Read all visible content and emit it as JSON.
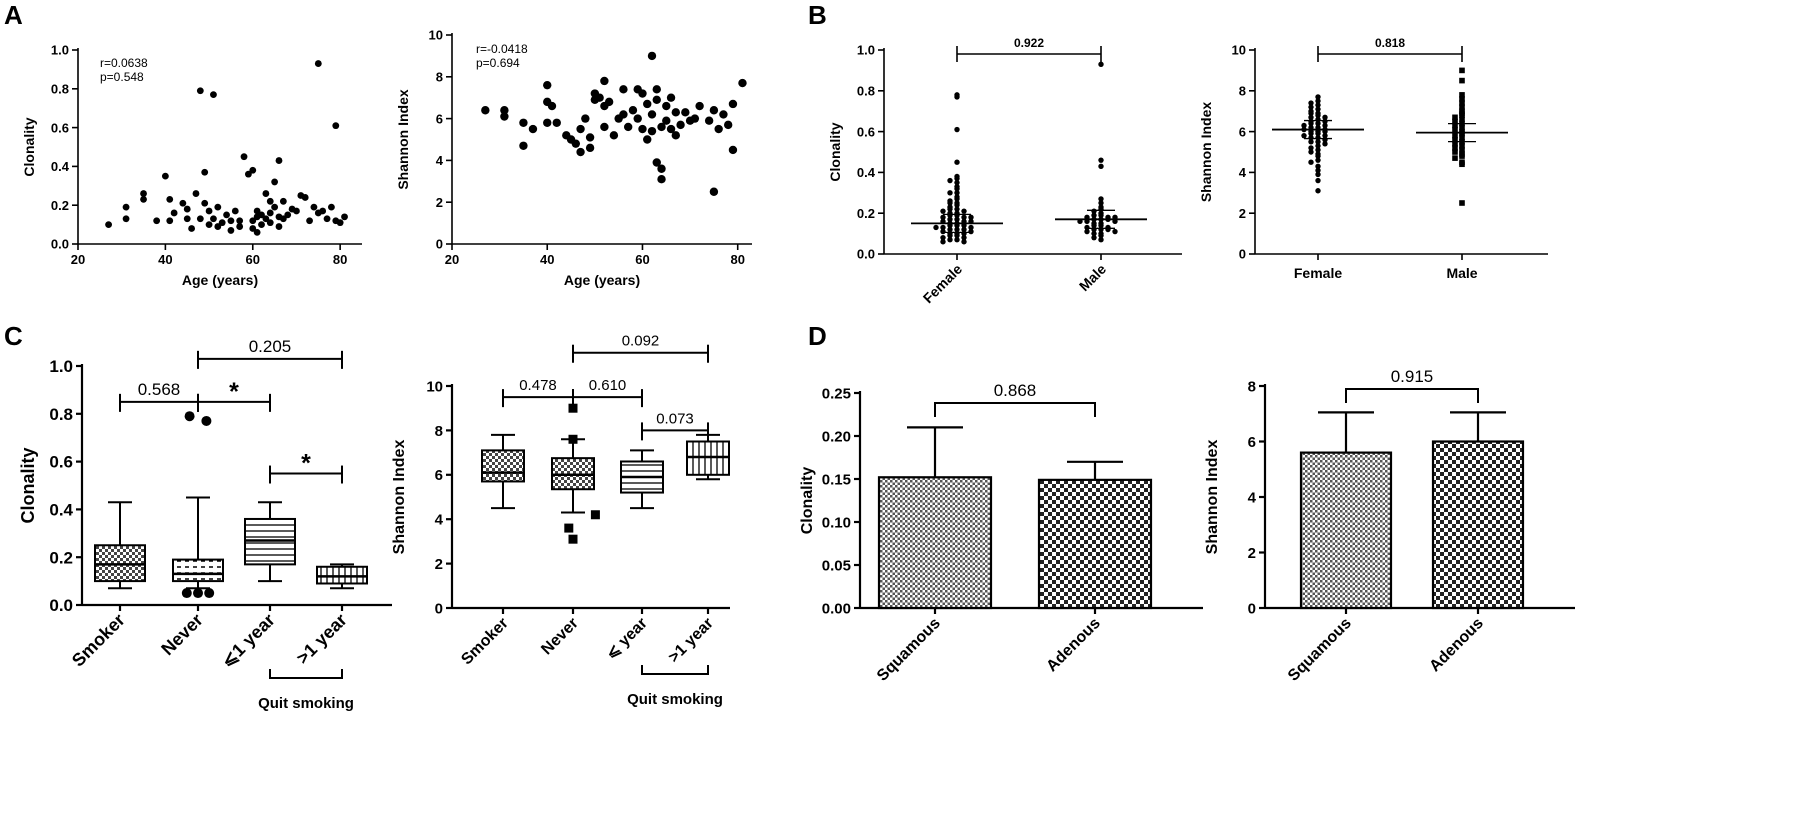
{
  "panel_labels": [
    "A",
    "B",
    "C",
    "D"
  ],
  "chart_data": [
    {
      "id": "A1",
      "panel": "A",
      "type": "scatter",
      "xlabel": "Age (years)",
      "ylabel": "Clonality",
      "xlim": [
        20,
        85
      ],
      "ylim": [
        0,
        1.0
      ],
      "xticks": [
        20,
        40,
        60,
        80
      ],
      "yticks": [
        0.0,
        0.2,
        0.4,
        0.6,
        0.8,
        1.0
      ],
      "yticklabels": [
        "0.0",
        "0.2",
        "0.4",
        "0.6",
        "0.8",
        "1.0"
      ],
      "annotations": [
        "r=0.0638",
        "p=0.548"
      ],
      "points": [
        [
          27,
          0.1
        ],
        [
          31,
          0.13
        ],
        [
          31,
          0.19
        ],
        [
          35,
          0.23
        ],
        [
          35,
          0.26
        ],
        [
          38,
          0.12
        ],
        [
          40,
          0.35
        ],
        [
          41,
          0.23
        ],
        [
          41,
          0.12
        ],
        [
          42,
          0.16
        ],
        [
          44,
          0.21
        ],
        [
          45,
          0.18
        ],
        [
          45,
          0.13
        ],
        [
          46,
          0.08
        ],
        [
          47,
          0.26
        ],
        [
          48,
          0.13
        ],
        [
          48,
          0.79
        ],
        [
          49,
          0.21
        ],
        [
          49,
          0.37
        ],
        [
          50,
          0.17
        ],
        [
          50,
          0.1
        ],
        [
          51,
          0.77
        ],
        [
          51,
          0.13
        ],
        [
          52,
          0.09
        ],
        [
          52,
          0.19
        ],
        [
          53,
          0.11
        ],
        [
          54,
          0.15
        ],
        [
          55,
          0.07
        ],
        [
          55,
          0.12
        ],
        [
          56,
          0.17
        ],
        [
          57,
          0.09
        ],
        [
          57,
          0.12
        ],
        [
          58,
          0.45
        ],
        [
          59,
          0.36
        ],
        [
          60,
          0.38
        ],
        [
          60,
          0.08
        ],
        [
          60,
          0.12
        ],
        [
          61,
          0.14
        ],
        [
          61,
          0.17
        ],
        [
          61,
          0.06
        ],
        [
          62,
          0.15
        ],
        [
          62,
          0.1
        ],
        [
          63,
          0.13
        ],
        [
          63,
          0.26
        ],
        [
          64,
          0.22
        ],
        [
          64,
          0.16
        ],
        [
          64,
          0.11
        ],
        [
          65,
          0.32
        ],
        [
          65,
          0.19
        ],
        [
          66,
          0.43
        ],
        [
          66,
          0.14
        ],
        [
          66,
          0.09
        ],
        [
          67,
          0.22
        ],
        [
          67,
          0.13
        ],
        [
          68,
          0.15
        ],
        [
          69,
          0.18
        ],
        [
          70,
          0.17
        ],
        [
          71,
          0.25
        ],
        [
          72,
          0.24
        ],
        [
          73,
          0.12
        ],
        [
          74,
          0.19
        ],
        [
          75,
          0.93
        ],
        [
          75,
          0.16
        ],
        [
          76,
          0.17
        ],
        [
          77,
          0.13
        ],
        [
          78,
          0.19
        ],
        [
          79,
          0.61
        ],
        [
          79,
          0.12
        ],
        [
          80,
          0.11
        ],
        [
          81,
          0.14
        ]
      ]
    },
    {
      "id": "A2",
      "panel": "A",
      "type": "scatter",
      "xlabel": "Age (years)",
      "ylabel": "Shannon Index",
      "xlim": [
        20,
        83
      ],
      "ylim": [
        0,
        10
      ],
      "xticks": [
        20,
        40,
        60,
        80
      ],
      "yticks": [
        0,
        2,
        4,
        6,
        8,
        10
      ],
      "yticklabels": [
        "0",
        "2",
        "4",
        "6",
        "8",
        "10"
      ],
      "annotations": [
        "r=-0.0418",
        "p=0.694"
      ],
      "points": [
        [
          27,
          6.4
        ],
        [
          31,
          6.4
        ],
        [
          31,
          6.1
        ],
        [
          35,
          5.8
        ],
        [
          35,
          4.7
        ],
        [
          37,
          5.5
        ],
        [
          40,
          7.6
        ],
        [
          40,
          6.8
        ],
        [
          40,
          5.8
        ],
        [
          41,
          6.6
        ],
        [
          42,
          5.8
        ],
        [
          44,
          5.2
        ],
        [
          45,
          5.0
        ],
        [
          46,
          4.8
        ],
        [
          47,
          4.4
        ],
        [
          47,
          5.5
        ],
        [
          48,
          6.0
        ],
        [
          49,
          4.6
        ],
        [
          49,
          5.1
        ],
        [
          50,
          7.2
        ],
        [
          50,
          6.9
        ],
        [
          51,
          7.0
        ],
        [
          52,
          7.8
        ],
        [
          52,
          6.6
        ],
        [
          52,
          5.6
        ],
        [
          53,
          6.8
        ],
        [
          54,
          5.2
        ],
        [
          55,
          6.0
        ],
        [
          56,
          7.4
        ],
        [
          56,
          6.2
        ],
        [
          57,
          5.6
        ],
        [
          58,
          6.4
        ],
        [
          59,
          7.4
        ],
        [
          59,
          6.0
        ],
        [
          60,
          7.2
        ],
        [
          60,
          5.5
        ],
        [
          61,
          6.7
        ],
        [
          61,
          5.0
        ],
        [
          62,
          9.0
        ],
        [
          62,
          6.2
        ],
        [
          62,
          5.4
        ],
        [
          63,
          6.9
        ],
        [
          63,
          3.9
        ],
        [
          63,
          7.4
        ],
        [
          64,
          5.6
        ],
        [
          64,
          3.1
        ],
        [
          64,
          3.6
        ],
        [
          65,
          6.6
        ],
        [
          65,
          5.9
        ],
        [
          66,
          7.0
        ],
        [
          66,
          5.5
        ],
        [
          67,
          6.3
        ],
        [
          67,
          5.2
        ],
        [
          68,
          5.7
        ],
        [
          69,
          6.3
        ],
        [
          70,
          5.9
        ],
        [
          71,
          6.0
        ],
        [
          72,
          6.6
        ],
        [
          74,
          5.9
        ],
        [
          75,
          2.5
        ],
        [
          75,
          6.4
        ],
        [
          76,
          5.5
        ],
        [
          77,
          6.2
        ],
        [
          78,
          5.7
        ],
        [
          79,
          4.5
        ],
        [
          79,
          6.7
        ],
        [
          81,
          7.7
        ]
      ]
    },
    {
      "id": "B1",
      "panel": "B",
      "type": "scatter",
      "categories": [
        "Female",
        "Male"
      ],
      "ylabel": "Clonality",
      "ylim": [
        0,
        1.0
      ],
      "yticks": [
        0.0,
        0.2,
        0.4,
        0.6,
        0.8,
        1.0
      ],
      "yticklabels": [
        "0.0",
        "0.2",
        "0.4",
        "0.6",
        "0.8",
        "1.0"
      ],
      "median_lines": [
        0.15,
        0.17
      ],
      "comparisons": [
        {
          "from": 0,
          "to": 1,
          "label": "0.922"
        }
      ],
      "groups": [
        {
          "name": "Female",
          "values": [
            0.78,
            0.77,
            0.61,
            0.45,
            0.38,
            0.37,
            0.36,
            0.35,
            0.33,
            0.32,
            0.3,
            0.3,
            0.28,
            0.27,
            0.26,
            0.25,
            0.25,
            0.24,
            0.23,
            0.22,
            0.22,
            0.21,
            0.21,
            0.2,
            0.2,
            0.19,
            0.19,
            0.18,
            0.18,
            0.18,
            0.17,
            0.17,
            0.16,
            0.16,
            0.16,
            0.15,
            0.15,
            0.15,
            0.14,
            0.14,
            0.14,
            0.13,
            0.13,
            0.13,
            0.12,
            0.12,
            0.12,
            0.11,
            0.11,
            0.1,
            0.1,
            0.1,
            0.09,
            0.09,
            0.08,
            0.08,
            0.07,
            0.07,
            0.06,
            0.06
          ]
        },
        {
          "name": "Male",
          "values": [
            0.93,
            0.46,
            0.43,
            0.27,
            0.25,
            0.23,
            0.22,
            0.21,
            0.2,
            0.19,
            0.19,
            0.18,
            0.18,
            0.18,
            0.17,
            0.17,
            0.17,
            0.16,
            0.16,
            0.16,
            0.15,
            0.15,
            0.14,
            0.14,
            0.13,
            0.13,
            0.12,
            0.12,
            0.12,
            0.11,
            0.11,
            0.1,
            0.1,
            0.09,
            0.08,
            0.07
          ]
        }
      ]
    },
    {
      "id": "B2",
      "panel": "B",
      "type": "scatter",
      "categories": [
        "Female",
        "Male"
      ],
      "ylabel": "Shannon Index",
      "ylim": [
        0,
        10
      ],
      "yticks": [
        0,
        2,
        4,
        6,
        8,
        10
      ],
      "yticklabels": [
        "0",
        "2",
        "4",
        "6",
        "8",
        "10"
      ],
      "median_lines": [
        6.1,
        5.95
      ],
      "comparisons": [
        {
          "from": 0,
          "to": 1,
          "label": "0.818"
        }
      ],
      "groups": [
        {
          "name": "Female",
          "values": [
            7.7,
            7.5,
            7.4,
            7.3,
            7.2,
            7.1,
            7.0,
            6.9,
            6.9,
            6.8,
            6.7,
            6.7,
            6.6,
            6.5,
            6.5,
            6.4,
            6.4,
            6.3,
            6.3,
            6.2,
            6.2,
            6.1,
            6.1,
            6.0,
            6.0,
            6.0,
            5.9,
            5.9,
            5.8,
            5.8,
            5.7,
            5.7,
            5.6,
            5.5,
            5.5,
            5.4,
            5.3,
            5.2,
            5.1,
            5.0,
            4.9,
            4.8,
            4.6,
            4.5,
            4.3,
            4.1,
            3.9,
            3.6,
            3.1
          ]
        },
        {
          "name": "Male",
          "values": [
            9.0,
            8.5,
            7.8,
            7.6,
            7.4,
            7.2,
            7.0,
            6.9,
            6.8,
            6.7,
            6.6,
            6.5,
            6.4,
            6.3,
            6.2,
            6.1,
            6.0,
            5.9,
            5.8,
            5.7,
            5.6,
            5.5,
            5.4,
            5.3,
            5.2,
            5.1,
            5.0,
            4.9,
            4.8,
            4.7,
            4.5,
            4.4,
            2.5
          ]
        }
      ]
    },
    {
      "id": "C1",
      "panel": "C",
      "type": "box",
      "categories": [
        "Smoker",
        "Never",
        "⩽1 year",
        ">1 year"
      ],
      "ylabel": "Clonality",
      "ylim": [
        0,
        1.0
      ],
      "yticks": [
        0.0,
        0.2,
        0.4,
        0.6,
        0.8,
        1.0
      ],
      "yticklabels": [
        "0.0",
        "0.2",
        "0.4",
        "0.6",
        "0.8",
        "1.0"
      ],
      "group_label": "Quit smoking",
      "boxes": [
        {
          "name": "Smoker",
          "min": 0.07,
          "q1": 0.1,
          "median": 0.17,
          "q3": 0.25,
          "max": 0.43,
          "pattern": "check"
        },
        {
          "name": "Never",
          "min": 0.07,
          "q1": 0.1,
          "median": 0.13,
          "q3": 0.19,
          "max": 0.45,
          "pattern": "dash"
        },
        {
          "name": "⩽1 year",
          "min": 0.1,
          "q1": 0.17,
          "median": 0.27,
          "q3": 0.36,
          "max": 0.43,
          "pattern": "hstripe"
        },
        {
          "name": ">1 year",
          "min": 0.07,
          "q1": 0.09,
          "median": 0.12,
          "q3": 0.16,
          "max": 0.17,
          "pattern": "vstripe"
        }
      ],
      "outliers": [
        {
          "group": 1,
          "value": 0.79,
          "offset": -0.3
        },
        {
          "group": 1,
          "value": 0.77,
          "offset": 0.3
        },
        {
          "group": 1,
          "value": 0.05,
          "offset": -0.4
        },
        {
          "group": 1,
          "value": 0.05,
          "offset": 0.0
        },
        {
          "group": 1,
          "value": 0.05,
          "offset": 0.4
        }
      ],
      "outlier_shape": "circle",
      "comparisons": [
        {
          "from": 0,
          "to": 1,
          "label": "0.568",
          "level": 0.85
        },
        {
          "from": 1,
          "to": 2,
          "label": "*",
          "level": 0.85
        },
        {
          "from": 1,
          "to": 3,
          "label": "0.205",
          "level": 1.03
        },
        {
          "from": 2,
          "to": 3,
          "label": "*",
          "level": 0.55
        }
      ]
    },
    {
      "id": "C2",
      "panel": "C",
      "type": "box",
      "categories": [
        "Smoker",
        "Never",
        "⩽ year",
        ">1 year"
      ],
      "ylabel": "Shannon Index",
      "ylim": [
        0,
        10
      ],
      "yticks": [
        0,
        2,
        4,
        6,
        8,
        10
      ],
      "yticklabels": [
        "0",
        "2",
        "4",
        "6",
        "8",
        "10"
      ],
      "group_label": "Quit smoking",
      "boxes": [
        {
          "name": "Smoker",
          "min": 4.5,
          "q1": 5.7,
          "median": 6.1,
          "q3": 7.1,
          "max": 7.8,
          "pattern": "check"
        },
        {
          "name": "Never",
          "min": 4.3,
          "q1": 5.35,
          "median": 6.0,
          "q3": 6.75,
          "max": 7.6,
          "pattern": "check"
        },
        {
          "name": "⩽ year",
          "min": 4.5,
          "q1": 5.2,
          "median": 5.9,
          "q3": 6.6,
          "max": 7.1,
          "pattern": "hstripe"
        },
        {
          "name": ">1 year",
          "min": 5.8,
          "q1": 6.0,
          "median": 6.8,
          "q3": 7.5,
          "max": 7.8,
          "pattern": "vstripe"
        }
      ],
      "outliers": [
        {
          "group": 1,
          "value": 9.0,
          "offset": 0
        },
        {
          "group": 1,
          "value": 7.6,
          "offset": 0
        },
        {
          "group": 1,
          "value": 4.2,
          "offset": 0.8
        },
        {
          "group": 1,
          "value": 3.6,
          "offset": -0.15
        },
        {
          "group": 1,
          "value": 3.1,
          "offset": 0
        }
      ],
      "outlier_shape": "square",
      "comparisons": [
        {
          "from": 0,
          "to": 1,
          "label": "0.478",
          "level": 9.5
        },
        {
          "from": 1,
          "to": 2,
          "label": "0.610",
          "level": 9.5
        },
        {
          "from": 1,
          "to": 3,
          "label": "0.092",
          "level": 11.5
        },
        {
          "from": 2,
          "to": 3,
          "label": "0.073",
          "level": 8.0
        }
      ]
    },
    {
      "id": "D1",
      "panel": "D",
      "type": "bar",
      "categories": [
        "Squamous",
        "Adenous"
      ],
      "values": [
        0.152,
        0.149
      ],
      "errors": [
        0.058,
        0.021
      ],
      "ylabel": "Clonality",
      "ylim": [
        0,
        0.25
      ],
      "yticks": [
        0.0,
        0.05,
        0.1,
        0.15,
        0.2,
        0.25
      ],
      "yticklabels": [
        "0.00",
        "0.05",
        "0.10",
        "0.15",
        "0.20",
        "0.25"
      ],
      "patterns": [
        "fine",
        "coarse"
      ],
      "comparisons": [
        {
          "from": 0,
          "to": 1,
          "label": "0.868"
        }
      ]
    },
    {
      "id": "D2",
      "panel": "D",
      "type": "bar",
      "categories": [
        "Squamous",
        "Adenous"
      ],
      "values": [
        5.6,
        6.0
      ],
      "errors": [
        1.45,
        1.05
      ],
      "ylabel": "Shannon Index",
      "ylim": [
        0,
        8
      ],
      "yticks": [
        0,
        2,
        4,
        6,
        8
      ],
      "yticklabels": [
        "0",
        "2",
        "4",
        "6",
        "8"
      ],
      "patterns": [
        "fine",
        "coarse"
      ],
      "comparisons": [
        {
          "from": 0,
          "to": 1,
          "label": "0.915"
        }
      ]
    }
  ]
}
